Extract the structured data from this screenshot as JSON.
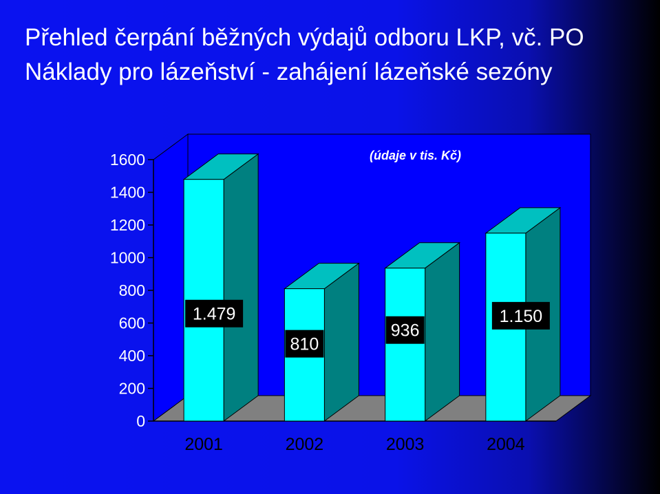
{
  "slide": {
    "title_line1": "Přehled čerpání běžných výdajů odboru LKP, vč. PO",
    "title_line2": "Náklady pro lázeňství - zahájení lázeňské sezóny"
  },
  "chart_data": {
    "type": "bar",
    "title": "",
    "annotation": "(údaje v tis. Kč)",
    "categories": [
      "2001",
      "2002",
      "2003",
      "2004"
    ],
    "values": [
      1479,
      810,
      936,
      1150
    ],
    "data_labels": [
      "1.479",
      "810",
      "936",
      "1.150"
    ],
    "xlabel": "",
    "ylabel": "",
    "ylim": [
      0,
      1600
    ],
    "yticks": [
      0,
      200,
      400,
      600,
      800,
      1000,
      1200,
      1400,
      1600
    ],
    "grid": false,
    "three_d": true,
    "colors": {
      "bar_front": "#00ffff",
      "bar_side": "#008080",
      "bar_top": "#00c0c0",
      "floor": "#808080",
      "walls": "#0000ff",
      "label_box": "#000000",
      "label_text": "#ffffff"
    }
  }
}
